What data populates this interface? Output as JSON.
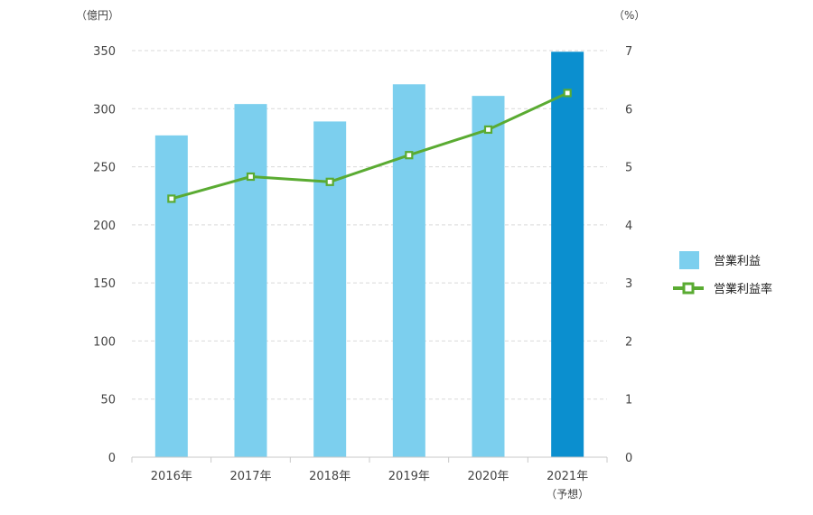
{
  "chart_data": {
    "type": "bar+line",
    "title": "",
    "categories": [
      "2016年",
      "2017年",
      "2018年",
      "2019年",
      "2020年",
      "2021年"
    ],
    "category_sublabels": [
      "",
      "",
      "",
      "",
      "",
      "（予想）"
    ],
    "series": [
      {
        "name": "営業利益",
        "type": "bar",
        "axis": "left",
        "color": "#7ccfee",
        "highlight_color": "#0b8fcf",
        "highlight_index": 5,
        "values": [
          277,
          304,
          289,
          321,
          311,
          349
        ]
      },
      {
        "name": "営業利益率",
        "type": "line",
        "axis": "right",
        "color": "#5aab32",
        "values": [
          4.45,
          4.83,
          4.74,
          5.2,
          5.64,
          6.27
        ]
      }
    ],
    "y_left": {
      "unit": "（億円）",
      "min": 0,
      "max": 350,
      "ticks": [
        0,
        50,
        100,
        150,
        200,
        250,
        300,
        350
      ]
    },
    "y_right": {
      "unit": "（%）",
      "min": 0,
      "max": 7,
      "ticks": [
        0,
        1,
        2,
        3,
        4,
        5,
        6,
        7
      ]
    },
    "grid": true,
    "legend": {
      "position": "right",
      "items": [
        {
          "label": "営業利益",
          "kind": "bar",
          "color": "#7ccfee"
        },
        {
          "label": "営業利益率",
          "kind": "line",
          "color": "#5aab32"
        }
      ]
    }
  }
}
